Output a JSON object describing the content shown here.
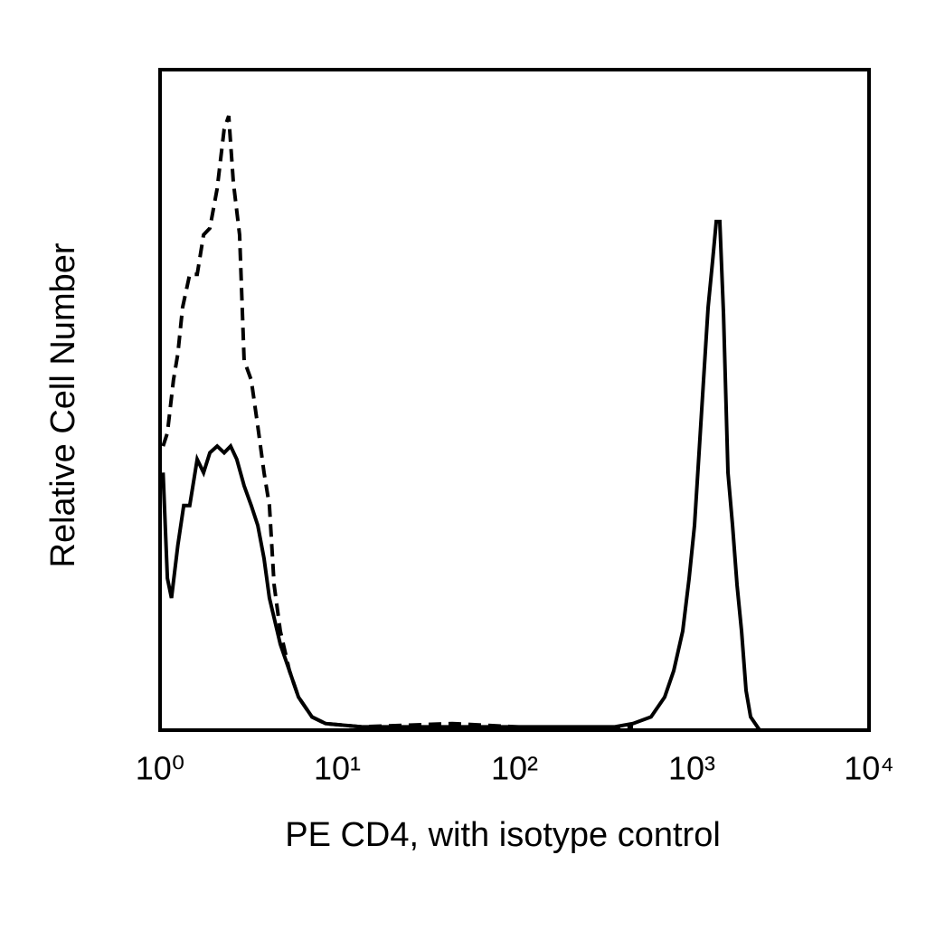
{
  "chart_data": {
    "type": "line",
    "x_label": "PE CD4, with isotype control",
    "y_label": "Relative Cell Number",
    "xscale": "log",
    "xlim": [
      1,
      10000
    ],
    "xticks": [
      {
        "value": 1,
        "label": "10⁰"
      },
      {
        "value": 10,
        "label": "10¹"
      },
      {
        "value": 100,
        "label": "10²"
      },
      {
        "value": 1000,
        "label": "10³"
      },
      {
        "value": 10000,
        "label": "10⁴"
      }
    ],
    "ylim": [
      0,
      100
    ],
    "grid": false,
    "series": [
      {
        "color": "#000000",
        "linestyle": "dashed",
        "x": [
          1.04,
          1.1,
          1.19,
          1.26,
          1.34,
          1.47,
          1.62,
          1.76,
          1.91,
          2.1,
          2.3,
          2.44,
          2.59,
          2.81,
          2.98,
          3.27,
          3.56,
          3.86,
          4.14,
          4.4,
          4.77,
          5.37,
          6.04,
          7.2,
          8.58,
          13.7,
          44.5,
          144,
          466
        ],
        "values": [
          43,
          45,
          53,
          57,
          64,
          69,
          69,
          75,
          76,
          82,
          91,
          93,
          83,
          75,
          56,
          53,
          46,
          39,
          34,
          22,
          15,
          9,
          5,
          2,
          1,
          0.5,
          1,
          0.3,
          0.5
        ]
      },
      {
        "color": "#000000",
        "linestyle": "solid",
        "x": [
          1.04,
          1.1,
          1.16,
          1.26,
          1.36,
          1.47,
          1.62,
          1.76,
          1.91,
          2.1,
          2.3,
          2.5,
          2.71,
          2.98,
          3.27,
          3.56,
          3.86,
          4.14,
          4.4,
          4.77,
          5.37,
          6.04,
          7.2,
          8.58,
          13.7,
          44.5,
          144,
          368,
          466,
          589,
          703,
          791,
          889,
          966,
          1036,
          1099,
          1165,
          1236,
          1310,
          1374,
          1439,
          1510,
          1600,
          1698,
          1800,
          1909,
          2024,
          2147,
          2415
        ],
        "values": [
          39,
          23,
          20,
          28,
          34,
          34,
          41,
          39,
          42,
          43,
          42,
          43,
          41,
          37,
          34,
          31,
          26,
          20,
          17,
          13,
          9,
          5,
          2,
          1,
          0.5,
          0.5,
          0.5,
          0.5,
          1,
          2,
          5,
          9,
          15,
          23,
          31,
          42,
          53,
          64,
          71,
          77,
          77,
          63,
          39,
          31,
          22,
          15,
          6,
          2,
          0
        ]
      }
    ]
  }
}
